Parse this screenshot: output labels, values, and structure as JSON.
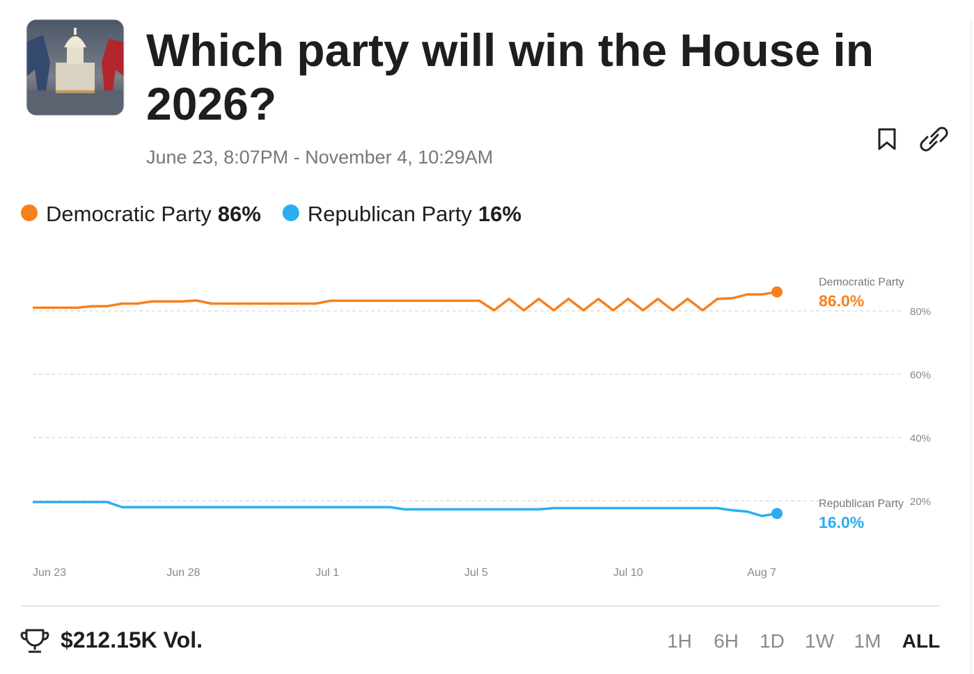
{
  "header": {
    "title": [
      "Which party will win the House in",
      "2026?"
    ],
    "date_range": "June 23, 8:07PM - November 4, 10:29AM"
  },
  "chart_data": {
    "type": "line",
    "categories": [
      "Jun 23",
      null,
      null,
      null,
      null,
      null,
      null,
      null,
      null,
      "Jun 28",
      null,
      null,
      null,
      null,
      null,
      null,
      null,
      null,
      null,
      "Jul 1",
      null,
      null,
      null,
      null,
      null,
      null,
      null,
      null,
      null,
      "Jul 5",
      null,
      null,
      null,
      null,
      null,
      null,
      null,
      null,
      null,
      "Jul 10",
      null,
      null,
      null,
      null,
      null,
      null,
      null,
      null,
      "Aug 7",
      null,
      null
    ],
    "series": [
      {
        "name": "Democratic Party",
        "color": "#f7801d",
        "legend_value": "86%",
        "end_label": "86.0%",
        "values": [
          81,
          81,
          81,
          81,
          81.5,
          81.5,
          82.3,
          82.3,
          83,
          83,
          83,
          83.3,
          82.3,
          82.3,
          82.3,
          82.3,
          82.3,
          82.3,
          82.3,
          82.3,
          83.2,
          83.2,
          83.2,
          83.2,
          83.2,
          83.2,
          83.2,
          83.2,
          83.2,
          83.2,
          83.2,
          80.2,
          83.8,
          80.2,
          83.8,
          80.2,
          83.8,
          80.2,
          83.8,
          80.2,
          83.8,
          80.2,
          83.8,
          80.2,
          83.8,
          80.2,
          83.8,
          84,
          85.2,
          85.2,
          86
        ]
      },
      {
        "name": "Republican Party",
        "color": "#2aaef0",
        "legend_value": "16%",
        "end_label": "16.0%",
        "values": [
          19.6,
          19.6,
          19.6,
          19.6,
          19.6,
          19.6,
          18,
          18,
          18,
          18,
          18,
          18,
          18,
          18,
          18,
          18,
          18,
          18,
          18,
          18,
          18,
          18,
          18,
          18,
          18,
          17.3,
          17.3,
          17.3,
          17.3,
          17.3,
          17.3,
          17.3,
          17.3,
          17.3,
          17.3,
          17.7,
          17.7,
          17.7,
          17.7,
          17.7,
          17.7,
          17.7,
          17.7,
          17.7,
          17.7,
          17.7,
          17.7,
          17,
          16.6,
          15.2,
          16
        ]
      }
    ],
    "ylim": [
      0,
      100
    ],
    "yticks": [
      {
        "value": 20,
        "label": "20%"
      },
      {
        "value": 40,
        "label": "40%"
      },
      {
        "value": 60,
        "label": "60%"
      },
      {
        "value": 80,
        "label": "80%"
      }
    ],
    "grid": true
  },
  "footer": {
    "volume": "$212.15K Vol.",
    "timeframes": [
      "1H",
      "6H",
      "1D",
      "1W",
      "1M",
      "ALL"
    ],
    "active_timeframe": 5
  }
}
